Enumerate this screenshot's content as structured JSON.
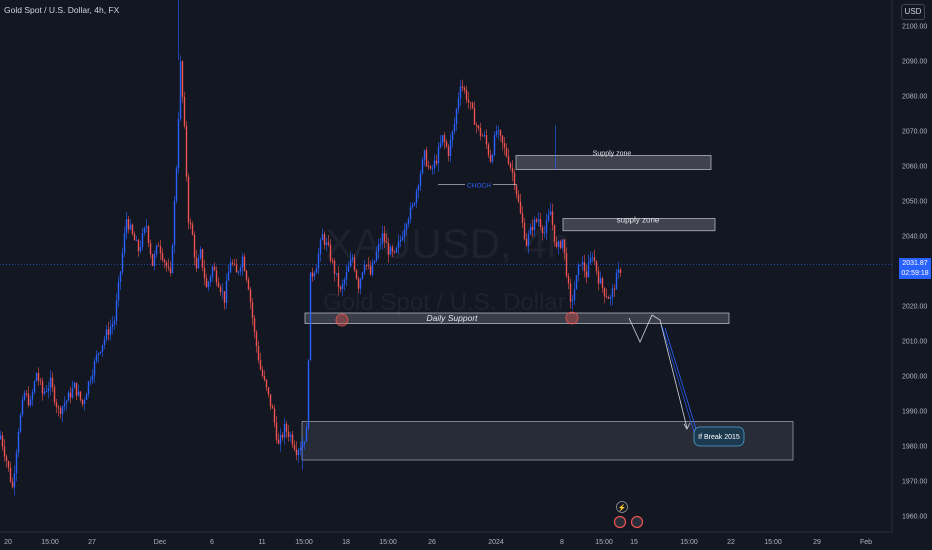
{
  "header": {
    "title": "Gold Spot / U.S. Dollar, 4h, FX",
    "currency_button": "USD"
  },
  "watermark": {
    "symbol": "XAUUSD, 4h",
    "name": "Gold Spot / U.S. Dollar"
  },
  "price_tag": {
    "price": "2031.87",
    "countdown": "02:59:18"
  },
  "colors": {
    "background": "#131722",
    "up_candle": "#2962ff",
    "down_candle": "#ef5350",
    "zone_fill": "#787b86",
    "price_line": "#2962ff"
  },
  "chart_data": {
    "type": "candlestick",
    "title": "Gold Spot / U.S. Dollar, 4h, FX",
    "xlabel": "",
    "ylabel": "",
    "ylim": [
      1957,
      2103
    ],
    "y_ticks": [
      2100.0,
      2090.0,
      2080.0,
      2070.0,
      2060.0,
      2050.0,
      2040.0,
      2030.0,
      2020.0,
      2010.0,
      2000.0,
      1990.0,
      1980.0,
      1970.0,
      1960.0
    ],
    "x_ticks": [
      "20",
      "15:00",
      "27",
      "Dec",
      "6",
      "11",
      "15:00",
      "18",
      "15:00",
      "26",
      "2024",
      "8",
      "15:00",
      "15",
      "15:00",
      "22",
      "15:00",
      "29",
      "Feb"
    ],
    "grid": false,
    "last_price": 2031.87,
    "close_path": [
      [
        0,
        1983
      ],
      [
        6,
        1976
      ],
      [
        12,
        1968
      ],
      [
        18,
        1985
      ],
      [
        24,
        1995
      ],
      [
        30,
        1992
      ],
      [
        36,
        2001
      ],
      [
        42,
        1995
      ],
      [
        50,
        1998
      ],
      [
        58,
        1990
      ],
      [
        66,
        1993
      ],
      [
        74,
        1997
      ],
      [
        82,
        1992
      ],
      [
        90,
        2000
      ],
      [
        98,
        2007
      ],
      [
        106,
        2012
      ],
      [
        114,
        2016
      ],
      [
        120,
        2030
      ],
      [
        126,
        2045
      ],
      [
        132,
        2040
      ],
      [
        138,
        2036
      ],
      [
        146,
        2043
      ],
      [
        152,
        2032
      ],
      [
        158,
        2038
      ],
      [
        164,
        2033
      ],
      [
        170,
        2028
      ],
      [
        176,
        2060
      ],
      [
        180,
        2089
      ],
      [
        184,
        2070
      ],
      [
        188,
        2045
      ],
      [
        192,
        2040
      ],
      [
        196,
        2030
      ],
      [
        200,
        2035
      ],
      [
        206,
        2025
      ],
      [
        212,
        2031
      ],
      [
        218,
        2027
      ],
      [
        224,
        2022
      ],
      [
        230,
        2033
      ],
      [
        236,
        2029
      ],
      [
        242,
        2034
      ],
      [
        248,
        2026
      ],
      [
        254,
        2012
      ],
      [
        260,
        2002
      ],
      [
        266,
        1996
      ],
      [
        272,
        1990
      ],
      [
        278,
        1980
      ],
      [
        284,
        1985
      ],
      [
        290,
        1983
      ],
      [
        296,
        1979
      ],
      [
        302,
        1981
      ],
      [
        306,
        1984
      ],
      [
        310,
        2028
      ],
      [
        316,
        2032
      ],
      [
        322,
        2040
      ],
      [
        328,
        2036
      ],
      [
        334,
        2030
      ],
      [
        340,
        2024
      ],
      [
        346,
        2029
      ],
      [
        352,
        2034
      ],
      [
        358,
        2026
      ],
      [
        364,
        2033
      ],
      [
        370,
        2029
      ],
      [
        376,
        2035
      ],
      [
        382,
        2040
      ],
      [
        388,
        2036
      ],
      [
        394,
        2034
      ],
      [
        400,
        2039
      ],
      [
        406,
        2045
      ],
      [
        412,
        2048
      ],
      [
        418,
        2056
      ],
      [
        424,
        2063
      ],
      [
        430,
        2058
      ],
      [
        436,
        2062
      ],
      [
        442,
        2068
      ],
      [
        448,
        2064
      ],
      [
        454,
        2072
      ],
      [
        460,
        2084
      ],
      [
        466,
        2080
      ],
      [
        472,
        2075
      ],
      [
        478,
        2070
      ],
      [
        484,
        2068
      ],
      [
        490,
        2062
      ],
      [
        496,
        2070
      ],
      [
        502,
        2066
      ],
      [
        508,
        2062
      ],
      [
        514,
        2056
      ],
      [
        520,
        2046
      ],
      [
        526,
        2038
      ],
      [
        532,
        2043
      ],
      [
        538,
        2045
      ],
      [
        544,
        2041
      ],
      [
        550,
        2047
      ],
      [
        556,
        2036
      ],
      [
        562,
        2039
      ],
      [
        566,
        2030
      ],
      [
        570,
        2020
      ],
      [
        574,
        2025
      ],
      [
        580,
        2033
      ],
      [
        586,
        2029
      ],
      [
        592,
        2035
      ],
      [
        598,
        2028
      ],
      [
        604,
        2024
      ],
      [
        610,
        2022
      ],
      [
        616,
        2028
      ],
      [
        622,
        2031.87
      ]
    ],
    "drawings": {
      "supply_zone_upper": {
        "label": "Supply zone",
        "x0": 516,
        "x1": 711,
        "y_top": 2063,
        "y_bottom": 2059
      },
      "supply_zone_lower": {
        "label": "supply zone",
        "x0": 563,
        "x1": 715,
        "y_top": 2045,
        "y_bottom": 2041.5
      },
      "daily_support": {
        "label": "Daily Support",
        "x0": 305,
        "x1": 729,
        "y_top": 2018,
        "y_bottom": 2015
      },
      "demand_box": {
        "x0": 302,
        "x1": 793,
        "y_top": 1987,
        "y_bottom": 1976
      },
      "choch_label": "CHOCH",
      "break_label": "If Break 2015"
    }
  }
}
